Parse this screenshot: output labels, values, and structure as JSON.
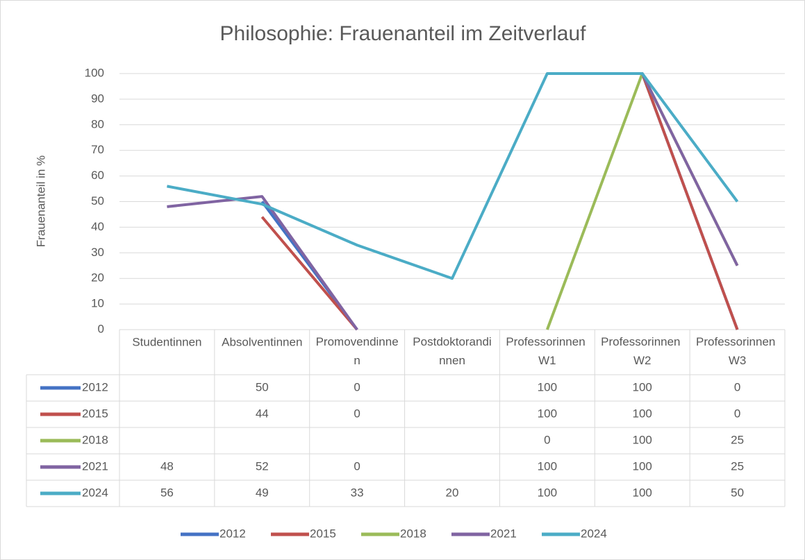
{
  "chart_data": {
    "type": "line",
    "title": "Philosophie: Frauenanteil im Zeitverlauf",
    "y_label": "Frauenanteil in %",
    "categories": [
      "Studentinnen",
      "Absolventinnen",
      "Promovendinnen",
      "Postdoktorandinnen",
      "Professorinnen W1",
      "Professorinnen W2",
      "Professorinnen W3"
    ],
    "series": [
      {
        "name": "2012",
        "color": "#4472c4",
        "values": [
          null,
          50,
          0,
          null,
          100,
          100,
          0
        ]
      },
      {
        "name": "2015",
        "color": "#c0504d",
        "values": [
          null,
          44,
          0,
          null,
          100,
          100,
          0
        ]
      },
      {
        "name": "2018",
        "color": "#9bbb59",
        "values": [
          null,
          null,
          null,
          null,
          0,
          100,
          25
        ]
      },
      {
        "name": "2021",
        "color": "#8064a2",
        "values": [
          48,
          52,
          0,
          null,
          100,
          100,
          25
        ]
      },
      {
        "name": "2024",
        "color": "#4bacc6",
        "values": [
          56,
          49,
          33,
          20,
          100,
          100,
          50
        ]
      }
    ],
    "ylim": [
      0,
      100
    ],
    "yticks": [
      0,
      10,
      20,
      30,
      40,
      50,
      60,
      70,
      80,
      90,
      100
    ],
    "grid": true,
    "data_table": true,
    "legend": "bottom"
  }
}
